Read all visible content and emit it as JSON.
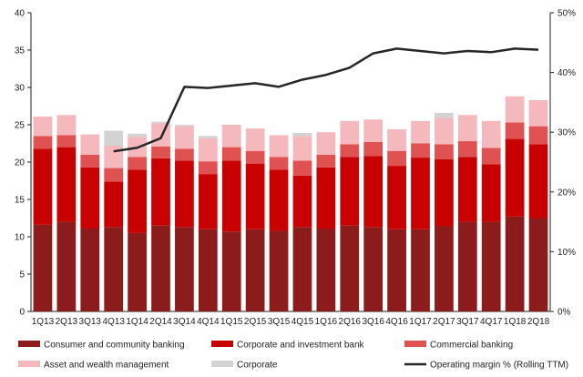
{
  "chart_data": {
    "type": "bar",
    "stacked": true,
    "categories": [
      "1Q13",
      "2Q13",
      "3Q13",
      "4Q13",
      "1Q14",
      "2Q14",
      "3Q14",
      "4Q14",
      "1Q15",
      "2Q15",
      "3Q15",
      "4Q15",
      "1Q16",
      "2Q16",
      "3Q16",
      "4Q16",
      "1Q17",
      "2Q17",
      "3Q17",
      "4Q17",
      "1Q18",
      "2Q18"
    ],
    "ylim": [
      0,
      40
    ],
    "yticks": [
      "0",
      "5",
      "10",
      "15",
      "20",
      "25",
      "30",
      "35",
      "40"
    ],
    "y2lim": [
      0,
      50
    ],
    "y2ticks": [
      "0%",
      "10%",
      "20%",
      "30%",
      "40%",
      "50%"
    ],
    "grid": false,
    "legend_position": "bottom",
    "series": [
      {
        "name": "Consumer and community banking",
        "color": "#8c1c1c",
        "values": [
          11.6,
          12.0,
          11.1,
          11.3,
          10.5,
          11.5,
          11.3,
          11.0,
          10.7,
          11.0,
          10.8,
          11.3,
          11.1,
          11.5,
          11.3,
          11.0,
          11.0,
          11.4,
          12.0,
          12.0,
          12.7,
          12.5
        ]
      },
      {
        "name": "Corporate and investment bank",
        "color": "#c80000",
        "values": [
          10.2,
          10.0,
          8.2,
          6.1,
          8.5,
          9.0,
          8.9,
          7.4,
          9.5,
          8.8,
          8.2,
          6.9,
          8.2,
          9.2,
          9.5,
          8.5,
          9.6,
          9.0,
          8.7,
          7.7,
          10.4,
          9.9
        ]
      },
      {
        "name": "Commercial banking",
        "color": "#e05252",
        "values": [
          1.7,
          1.6,
          1.7,
          1.8,
          1.7,
          1.6,
          1.6,
          1.7,
          1.8,
          1.7,
          1.7,
          2.0,
          1.7,
          1.7,
          1.9,
          2.0,
          1.9,
          2.0,
          2.1,
          2.2,
          2.2,
          2.4
        ]
      },
      {
        "name": "Asset and wealth management",
        "color": "#f5b8bd",
        "values": [
          2.6,
          2.7,
          2.7,
          3.0,
          2.7,
          3.1,
          3.0,
          3.1,
          3.0,
          3.0,
          2.9,
          3.3,
          3.0,
          3.1,
          3.0,
          2.9,
          3.0,
          3.5,
          3.5,
          3.6,
          3.5,
          3.5
        ]
      },
      {
        "name": "Corporate",
        "color": "#d3d3d3",
        "values": [
          0,
          0,
          0,
          2.0,
          0.4,
          0.2,
          0.2,
          0.3,
          0,
          0,
          0,
          0.4,
          0,
          0,
          0,
          0,
          0,
          0.7,
          0,
          0,
          0,
          0
        ]
      }
    ],
    "line": {
      "name": "Operating margin % (Rolling TTM)",
      "color": "#262626",
      "axis": "right",
      "start_index": 3,
      "values": [
        26.8,
        27.4,
        29,
        37.6,
        37.4,
        37.8,
        38.2,
        37.6,
        38.8,
        39.6,
        40.8,
        43.2,
        44,
        43.6,
        43.2,
        43.6,
        43.4,
        44,
        43.8
      ]
    }
  }
}
